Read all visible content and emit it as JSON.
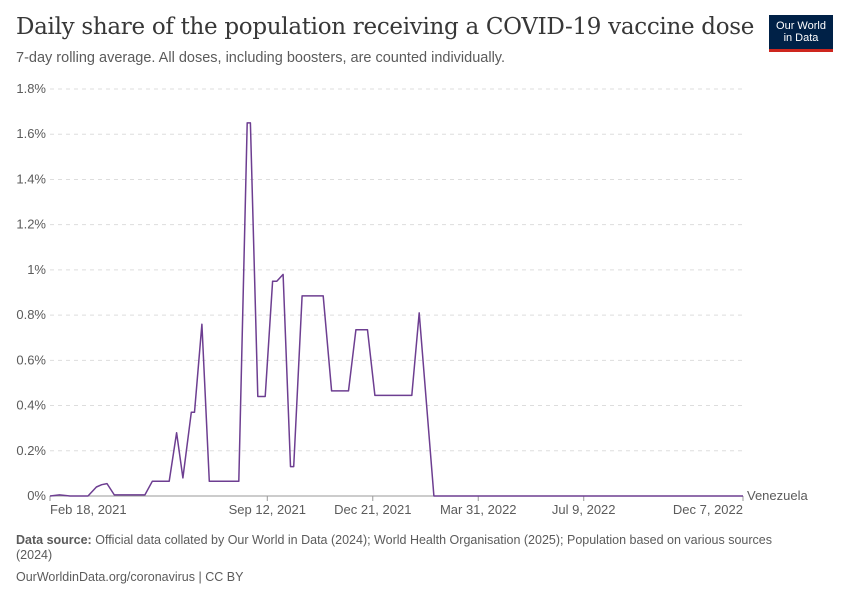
{
  "title": "Daily share of the population receiving a COVID-19 vaccine dose",
  "subtitle": "7-day rolling average. All doses, including boosters, are counted individually.",
  "logo": {
    "line1": "Our World",
    "line2": "in Data",
    "bg": "#002147",
    "accent": "#ce261e"
  },
  "footer": {
    "source_label": "Data source:",
    "source_text": "Official data collated by Our World in Data (2024); World Health Organisation (2025); Population based on various sources (2024)",
    "link": "OurWorldinData.org/coronavirus | CC BY"
  },
  "chart_data": {
    "type": "line",
    "title": "Daily share of the population receiving a COVID-19 vaccine dose",
    "ylim": [
      0,
      1.8
    ],
    "yunit": "%",
    "yticks": [
      0,
      0.2,
      0.4,
      0.6,
      0.8,
      1,
      1.2,
      1.4,
      1.6,
      1.8
    ],
    "ytick_labels": [
      "0%",
      "0.2%",
      "0.4%",
      "0.6%",
      "0.8%",
      "1%",
      "1.2%",
      "1.4%",
      "1.6%",
      "1.8%"
    ],
    "xlim": [
      "2021-02-18",
      "2022-12-07"
    ],
    "xticks": [
      "2021-02-18",
      "2021-09-12",
      "2021-12-21",
      "2022-03-31",
      "2022-07-09",
      "2022-12-07"
    ],
    "xtick_labels": [
      "Feb 18, 2021",
      "Sep 12, 2021",
      "Dec 21, 2021",
      "Mar 31, 2022",
      "Jul 9, 2022",
      "Dec 7, 2022"
    ],
    "grid": "horizontal dashed",
    "series": [
      {
        "name": "Venezuela",
        "color": "#6d3e91",
        "points": [
          [
            "2021-02-18",
            0
          ],
          [
            "2021-02-27",
            0.005
          ],
          [
            "2021-03-09",
            0
          ],
          [
            "2021-03-26",
            0
          ],
          [
            "2021-04-03",
            0.04
          ],
          [
            "2021-04-08",
            0.05
          ],
          [
            "2021-04-13",
            0.055
          ],
          [
            "2021-04-20",
            0.005
          ],
          [
            "2021-05-19",
            0.005
          ],
          [
            "2021-05-26",
            0.065
          ],
          [
            "2021-06-11",
            0.065
          ],
          [
            "2021-06-18",
            0.28
          ],
          [
            "2021-06-24",
            0.08
          ],
          [
            "2021-07-02",
            0.37
          ],
          [
            "2021-07-05",
            0.37
          ],
          [
            "2021-07-12",
            0.76
          ],
          [
            "2021-07-19",
            0.065
          ],
          [
            "2021-08-16",
            0.065
          ],
          [
            "2021-08-24",
            1.65
          ],
          [
            "2021-08-27",
            1.65
          ],
          [
            "2021-09-03",
            0.44
          ],
          [
            "2021-09-10",
            0.44
          ],
          [
            "2021-09-17",
            0.95
          ],
          [
            "2021-09-21",
            0.95
          ],
          [
            "2021-09-27",
            0.98
          ],
          [
            "2021-10-04",
            0.13
          ],
          [
            "2021-10-07",
            0.13
          ],
          [
            "2021-10-15",
            0.885
          ],
          [
            "2021-11-04",
            0.885
          ],
          [
            "2021-11-12",
            0.465
          ],
          [
            "2021-11-28",
            0.465
          ],
          [
            "2021-12-05",
            0.735
          ],
          [
            "2021-12-16",
            0.735
          ],
          [
            "2021-12-23",
            0.445
          ],
          [
            "2022-01-27",
            0.445
          ],
          [
            "2022-02-03",
            0.81
          ],
          [
            "2022-02-17",
            0
          ],
          [
            "2022-12-07",
            0
          ]
        ]
      }
    ]
  }
}
